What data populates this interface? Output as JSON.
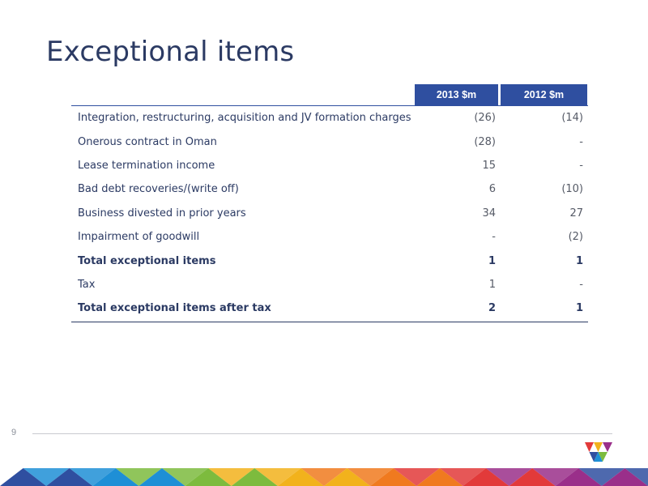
{
  "slide": {
    "title": "Exceptional items",
    "page_number": "9"
  },
  "table": {
    "headers": [
      "2013 $m",
      "2012 $m"
    ],
    "rows": [
      {
        "label": "Integration, restructuring, acquisition and JV formation charges",
        "v2013": "(26)",
        "v2012": "(14)",
        "bold": false
      },
      {
        "label": "Onerous contract in Oman",
        "v2013": "(28)",
        "v2012": "-",
        "bold": false
      },
      {
        "label": "Lease termination income",
        "v2013": "15",
        "v2012": "-",
        "bold": false
      },
      {
        "label": "Bad debt recoveries/(write off)",
        "v2013": "6",
        "v2012": "(10)",
        "bold": false
      },
      {
        "label": "Business divested in prior years",
        "v2013": "34",
        "v2012": "27",
        "bold": false
      },
      {
        "label": "Impairment of goodwill",
        "v2013": "-",
        "v2012": "(2)",
        "bold": false
      },
      {
        "label": "Total exceptional items",
        "v2013": "1",
        "v2012": "1",
        "bold": true
      },
      {
        "label": "Tax",
        "v2013": "1",
        "v2012": "-",
        "bold": false
      },
      {
        "label": "Total exceptional items after tax",
        "v2013": "2",
        "v2012": "1",
        "bold": true
      }
    ]
  },
  "colors": {
    "header_bg": "#2f4fa0",
    "title_text": "#2b3a63",
    "band": [
      "#2f4fa0",
      "#1e8fd6",
      "#7dbb3e",
      "#f2b21c",
      "#f07a1f",
      "#e23a3a",
      "#9a2f8a"
    ]
  },
  "icons": {
    "logo": "triangle-logo-icon"
  }
}
